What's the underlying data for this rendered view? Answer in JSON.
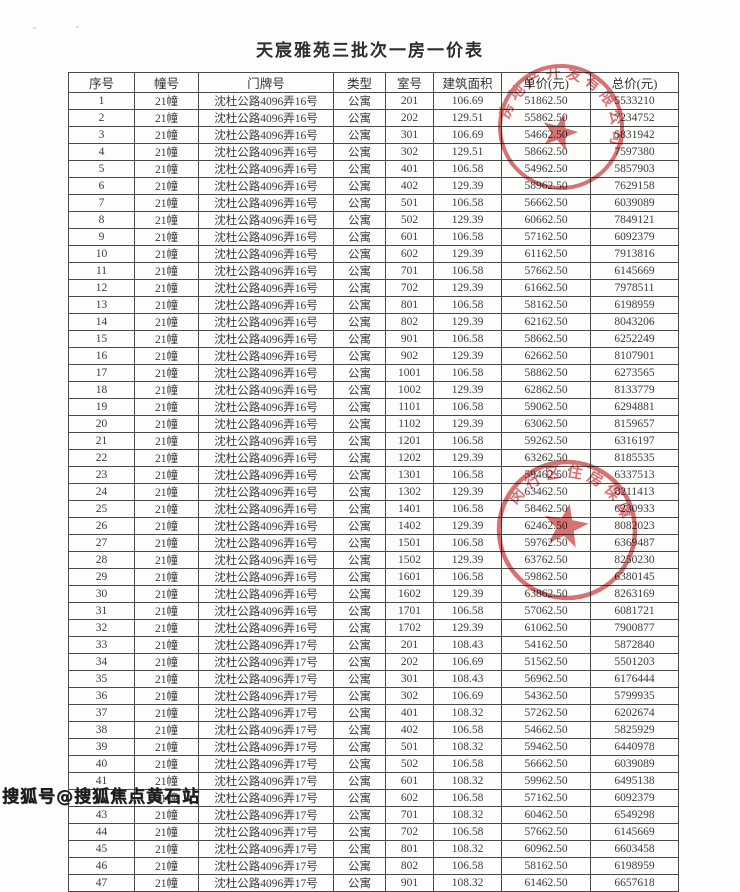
{
  "page": {
    "title": "天宸雅苑三批次一房一价表"
  },
  "watermark": {
    "text": "搜狐号@搜狐焦点黄石站"
  },
  "table": {
    "columns": [
      "序号",
      "幢号",
      "门牌号",
      "类型",
      "室号",
      "建筑面积",
      "单价(元)",
      "总价(元)"
    ],
    "building": "21幢",
    "unit_type": "公寓",
    "addresses": [
      "沈杜公路4096弄16号",
      "沈杜公路4096弄17号"
    ],
    "rows": [
      [
        "1",
        0,
        "201",
        "106.69",
        "51862.50",
        "5533210"
      ],
      [
        "2",
        0,
        "202",
        "129.51",
        "55862.50",
        "7234752"
      ],
      [
        "3",
        0,
        "301",
        "106.69",
        "54662.50",
        "5831942"
      ],
      [
        "4",
        0,
        "302",
        "129.51",
        "58662.50",
        "7597380"
      ],
      [
        "5",
        0,
        "401",
        "106.58",
        "54962.50",
        "5857903"
      ],
      [
        "6",
        0,
        "402",
        "129.39",
        "58962.50",
        "7629158"
      ],
      [
        "7",
        0,
        "501",
        "106.58",
        "56662.50",
        "6039089"
      ],
      [
        "8",
        0,
        "502",
        "129.39",
        "60662.50",
        "7849121"
      ],
      [
        "9",
        0,
        "601",
        "106.58",
        "57162.50",
        "6092379"
      ],
      [
        "10",
        0,
        "602",
        "129.39",
        "61162.50",
        "7913816"
      ],
      [
        "11",
        0,
        "701",
        "106.58",
        "57662.50",
        "6145669"
      ],
      [
        "12",
        0,
        "702",
        "129.39",
        "61662.50",
        "7978511"
      ],
      [
        "13",
        0,
        "801",
        "106.58",
        "58162.50",
        "6198959"
      ],
      [
        "14",
        0,
        "802",
        "129.39",
        "62162.50",
        "8043206"
      ],
      [
        "15",
        0,
        "901",
        "106.58",
        "58662.50",
        "6252249"
      ],
      [
        "16",
        0,
        "902",
        "129.39",
        "62662.50",
        "8107901"
      ],
      [
        "17",
        0,
        "1001",
        "106.58",
        "58862.50",
        "6273565"
      ],
      [
        "18",
        0,
        "1002",
        "129.39",
        "62862.50",
        "8133779"
      ],
      [
        "19",
        0,
        "1101",
        "106.58",
        "59062.50",
        "6294881"
      ],
      [
        "20",
        0,
        "1102",
        "129.39",
        "63062.50",
        "8159657"
      ],
      [
        "21",
        0,
        "1201",
        "106.58",
        "59262.50",
        "6316197"
      ],
      [
        "22",
        0,
        "1202",
        "129.39",
        "63262.50",
        "8185535"
      ],
      [
        "23",
        0,
        "1301",
        "106.58",
        "59462.50",
        "6337513"
      ],
      [
        "24",
        0,
        "1302",
        "129.39",
        "63462.50",
        "8211413"
      ],
      [
        "25",
        0,
        "1401",
        "106.58",
        "58462.50",
        "6230933"
      ],
      [
        "26",
        0,
        "1402",
        "129.39",
        "62462.50",
        "8082023"
      ],
      [
        "27",
        0,
        "1501",
        "106.58",
        "59762.50",
        "6369487"
      ],
      [
        "28",
        0,
        "1502",
        "129.39",
        "63762.50",
        "8250230"
      ],
      [
        "29",
        0,
        "1601",
        "106.58",
        "59862.50",
        "6380145"
      ],
      [
        "30",
        0,
        "1602",
        "129.39",
        "63862.50",
        "8263169"
      ],
      [
        "31",
        0,
        "1701",
        "106.58",
        "57062.50",
        "6081721"
      ],
      [
        "32",
        0,
        "1702",
        "129.39",
        "61062.50",
        "7900877"
      ],
      [
        "33",
        1,
        "201",
        "108.43",
        "54162.50",
        "5872840"
      ],
      [
        "34",
        1,
        "202",
        "106.69",
        "51562.50",
        "5501203"
      ],
      [
        "35",
        1,
        "301",
        "108.43",
        "56962.50",
        "6176444"
      ],
      [
        "36",
        1,
        "302",
        "106.69",
        "54362.50",
        "5799935"
      ],
      [
        "37",
        1,
        "401",
        "108.32",
        "57262.50",
        "6202674"
      ],
      [
        "38",
        1,
        "402",
        "106.58",
        "54662.50",
        "5825929"
      ],
      [
        "39",
        1,
        "501",
        "108.32",
        "59462.50",
        "6440978"
      ],
      [
        "40",
        1,
        "502",
        "106.58",
        "56662.50",
        "6039089"
      ],
      [
        "41",
        1,
        "601",
        "108.32",
        "59962.50",
        "6495138"
      ],
      [
        "42",
        1,
        "602",
        "106.58",
        "57162.50",
        "6092379"
      ],
      [
        "43",
        1,
        "701",
        "108.32",
        "60462.50",
        "6549298"
      ],
      [
        "44",
        1,
        "702",
        "106.58",
        "57662.50",
        "6145669"
      ],
      [
        "45",
        1,
        "801",
        "108.32",
        "60962.50",
        "6603458"
      ],
      [
        "46",
        1,
        "802",
        "106.58",
        "58162.50",
        "6198959"
      ],
      [
        "47",
        1,
        "901",
        "108.32",
        "61462.50",
        "6657618"
      ]
    ]
  },
  "stamps": [
    {
      "name": "developer-company-seal",
      "arc_text": "房地产开发有限公司",
      "color": "#cf4b4b"
    },
    {
      "name": "district-housing-seal",
      "arc_text": "闵行区住房保障",
      "color": "#cf4b4b"
    }
  ],
  "colors": {
    "stamp_red": "#cf4b4b",
    "table_border": "#4a4a4a",
    "text": "#3d3d3d",
    "background": "#fdfdfc"
  }
}
